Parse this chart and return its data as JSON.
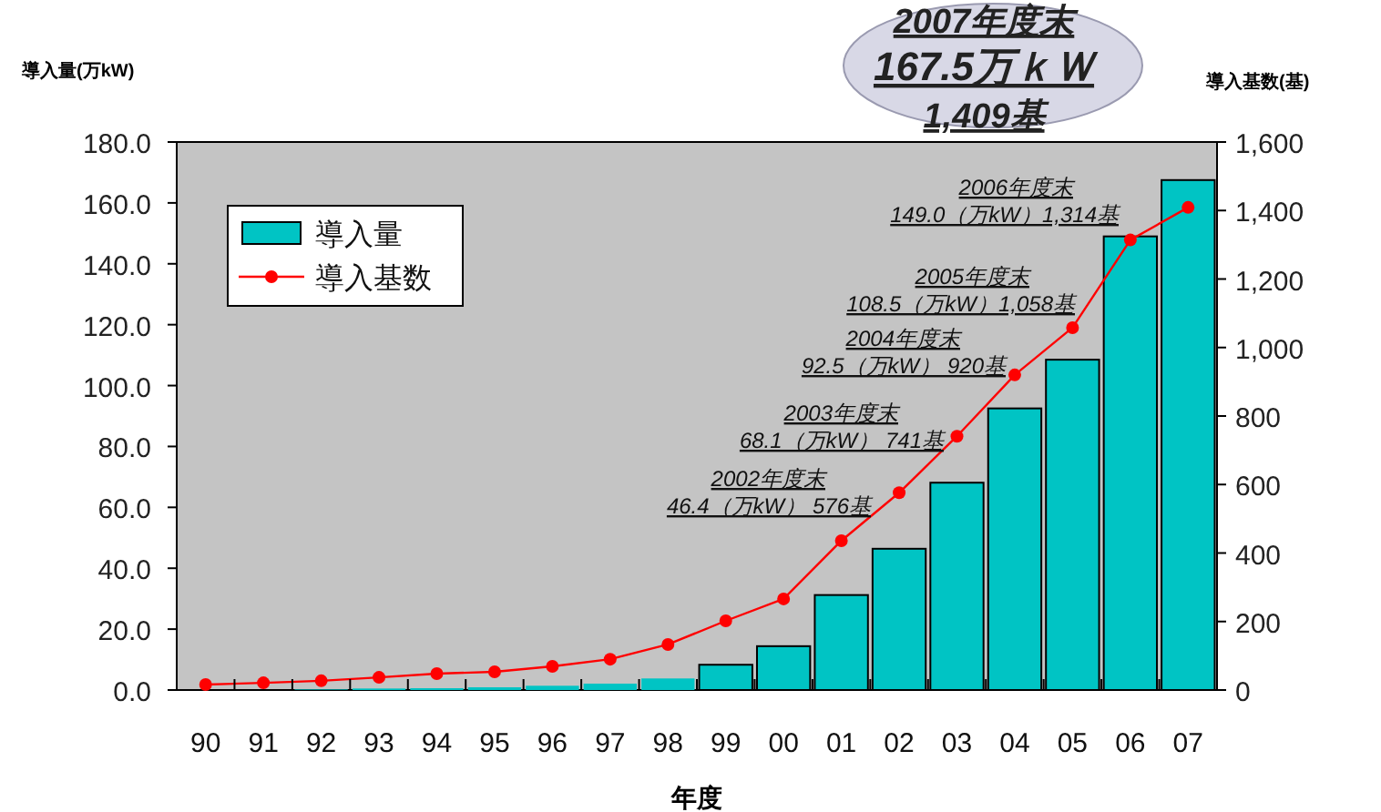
{
  "chart_data": {
    "type": "bar",
    "categories": [
      "90",
      "91",
      "92",
      "93",
      "94",
      "95",
      "96",
      "97",
      "98",
      "99",
      "00",
      "01",
      "02",
      "03",
      "04",
      "05",
      "06",
      "07"
    ],
    "series": [
      {
        "name": "導入量",
        "color": "#00c4c4",
        "values": [
          null,
          null,
          0.2,
          0.5,
          0.6,
          0.9,
          1.4,
          2.1,
          3.8,
          8.3,
          14.4,
          31.2,
          46.4,
          68.1,
          92.5,
          108.5,
          149.0,
          167.5
        ]
      },
      {
        "name": "導入基数",
        "type": "line",
        "axis": "y2",
        "color": "#ff0000",
        "marker": "circle",
        "values": [
          16,
          21,
          27,
          37,
          48,
          53,
          69,
          90,
          133,
          202,
          266,
          436,
          576,
          741,
          920,
          1058,
          1314,
          1409
        ]
      }
    ],
    "xlabel": "年度",
    "ylabel": "導入量(万kW)",
    "y2label": "導入基数(基)",
    "ylim": [
      0,
      180
    ],
    "yticks": [
      {
        "value": 0,
        "label": "0.0"
      },
      {
        "value": 20,
        "label": "20.0"
      },
      {
        "value": 40,
        "label": "40.0"
      },
      {
        "value": 60,
        "label": "60.0"
      },
      {
        "value": 80,
        "label": "80.0"
      },
      {
        "value": 100,
        "label": "100.0"
      },
      {
        "value": 120,
        "label": "120.0"
      },
      {
        "value": 140,
        "label": "140.0"
      },
      {
        "value": 160,
        "label": "160.0"
      },
      {
        "value": 180,
        "label": "180.0"
      }
    ],
    "y2lim": [
      0,
      1600
    ],
    "y2ticks": [
      0,
      200,
      400,
      600,
      800,
      {
        "value": 1000,
        "label": "1,000"
      },
      {
        "value": 1200,
        "label": "1,200"
      },
      {
        "value": 1400,
        "label": "1,400"
      },
      {
        "value": 1600,
        "label": "1,600"
      }
    ],
    "annotations": [
      "2002年度末\n46.4（万kW） 576基",
      "2003年度末\n68.1（万kW） 741基",
      "2004年度末\n92.5（万kW） 920基",
      "2005年度末\n108.5（万kW）1,058基",
      "2006年度末\n149.0（万kW）1,314基",
      "2007年度末\n167.5万ｋＷ\n1,409基"
    ],
    "legend": "top left",
    "grid": false
  }
}
